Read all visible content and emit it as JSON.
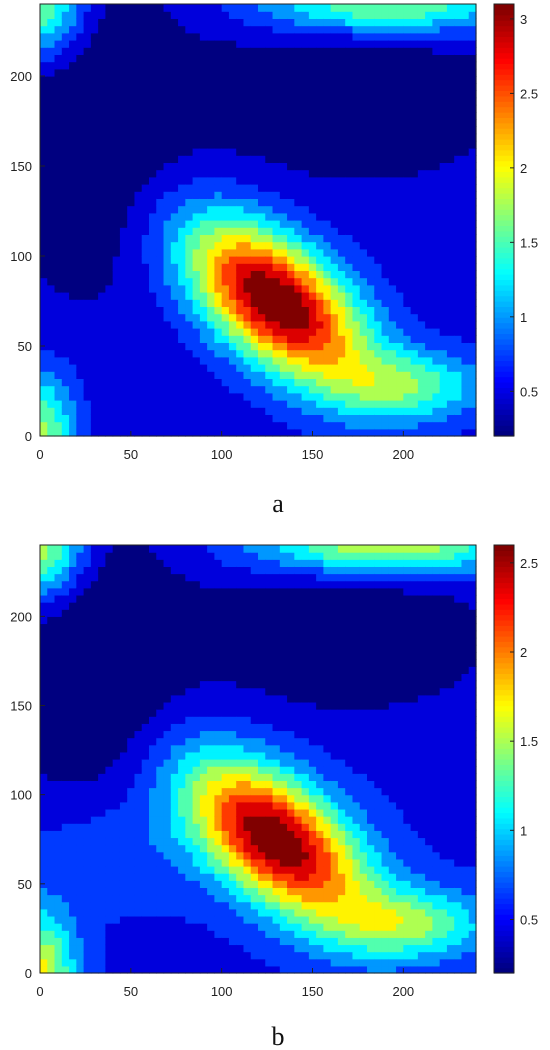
{
  "chart_data": [
    {
      "type": "heatmap",
      "style": "filled-contour",
      "caption": "a",
      "x": {
        "ticks": [
          0,
          50,
          100,
          150,
          200
        ],
        "range": [
          0,
          240
        ]
      },
      "y": {
        "ticks": [
          0,
          50,
          100,
          150,
          200
        ],
        "range": [
          0,
          240
        ]
      },
      "colorbar": {
        "ticks": [
          "0.5",
          "1",
          "1.5",
          "2",
          "2.5",
          "3"
        ],
        "range": [
          0.2,
          3.1
        ],
        "colormap": "jet",
        "position": "right"
      },
      "field": {
        "background": 0.55,
        "components": [
          {
            "amp": 2.6,
            "cx": 130,
            "cy": 75,
            "sx": 42,
            "sy": 22,
            "rot": -40
          },
          {
            "amp": 0.9,
            "cx": 205,
            "cy": 28,
            "sx": 30,
            "sy": 14,
            "rot": 0
          },
          {
            "amp": -0.45,
            "cx": 30,
            "cy": 175,
            "sx": 35,
            "sy": 60,
            "rot": 0
          },
          {
            "amp": -0.4,
            "cx": 170,
            "cy": 190,
            "sx": 55,
            "sy": 30,
            "rot": 0
          },
          {
            "amp": 1.2,
            "cx": 0,
            "cy": 240,
            "sx": 18,
            "sy": 22,
            "rot": 0
          },
          {
            "amp": 1.2,
            "cx": 190,
            "cy": 240,
            "sx": 50,
            "sy": 12,
            "rot": 0
          },
          {
            "amp": 1.2,
            "cx": 0,
            "cy": 0,
            "sx": 14,
            "sy": 25,
            "rot": 0
          }
        ]
      }
    },
    {
      "type": "heatmap",
      "style": "filled-contour",
      "caption": "b",
      "x": {
        "ticks": [
          0,
          50,
          100,
          150,
          200
        ],
        "range": [
          0,
          240
        ]
      },
      "y": {
        "ticks": [
          0,
          50,
          100,
          150,
          200
        ],
        "range": [
          0,
          240
        ]
      },
      "colorbar": {
        "ticks": [
          "0.5",
          "1",
          "1.5",
          "2",
          "2.5"
        ],
        "range": [
          0.2,
          2.6
        ],
        "colormap": "jet",
        "position": "right"
      },
      "field": {
        "background": 0.55,
        "components": [
          {
            "amp": 2.05,
            "cx": 130,
            "cy": 75,
            "sx": 42,
            "sy": 22,
            "rot": -40
          },
          {
            "amp": 0.8,
            "cx": 205,
            "cy": 28,
            "sx": 30,
            "sy": 14,
            "rot": 0
          },
          {
            "amp": 0.25,
            "cx": 40,
            "cy": 70,
            "sx": 35,
            "sy": 25,
            "rot": 0
          },
          {
            "amp": -0.45,
            "cx": 30,
            "cy": 175,
            "sx": 35,
            "sy": 60,
            "rot": 0
          },
          {
            "amp": -0.4,
            "cx": 170,
            "cy": 190,
            "sx": 55,
            "sy": 30,
            "rot": 0
          },
          {
            "amp": 1.1,
            "cx": 0,
            "cy": 240,
            "sx": 18,
            "sy": 22,
            "rot": 0
          },
          {
            "amp": 1.1,
            "cx": 190,
            "cy": 240,
            "sx": 50,
            "sy": 12,
            "rot": 0
          },
          {
            "amp": 1.1,
            "cx": 0,
            "cy": 0,
            "sx": 14,
            "sy": 25,
            "rot": 0
          }
        ]
      }
    }
  ]
}
